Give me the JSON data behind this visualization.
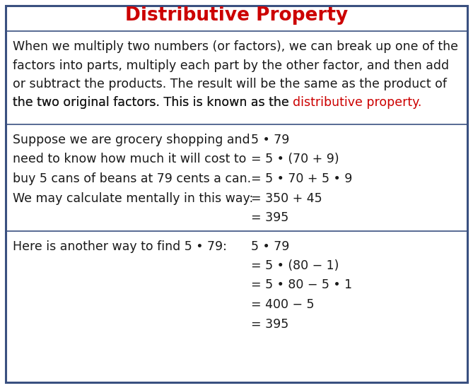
{
  "title": "Distributive Property",
  "title_color": "#cc0000",
  "border_color": "#3a5080",
  "bg_color": "#ffffff",
  "text_color": "#1a1a1a",
  "red_color": "#cc0000",
  "intro_lines": [
    "When we multiply two numbers (or factors), we can break up one of the",
    "factors into parts, multiply each part by the other factor, and then add",
    "or subtract the products. The result will be the same as the product of",
    "the two original factors. This is known as the "
  ],
  "intro_red": "distributive property.",
  "ex1_left": [
    "Suppose we are grocery shopping and",
    "need to know how much it will cost to",
    "buy 5 cans of beans at 79 cents a can.",
    "We may calculate mentally in this way:"
  ],
  "ex1_right": [
    "5 • 79",
    "= 5 • (70 + 9)",
    "= 5 • 70 + 5 • 9",
    "= 350 + 45",
    "= 395"
  ],
  "ex2_left": [
    "Here is another way to find 5 • 79:"
  ],
  "ex2_right": [
    "5 • 79",
    "= 5 • (80 − 1)",
    "= 5 • 80 − 5 • 1",
    "= 400 − 5",
    "= 395"
  ],
  "font_size_title": 19,
  "font_size_body": 12.5,
  "font_family": "DejaVu Sans"
}
